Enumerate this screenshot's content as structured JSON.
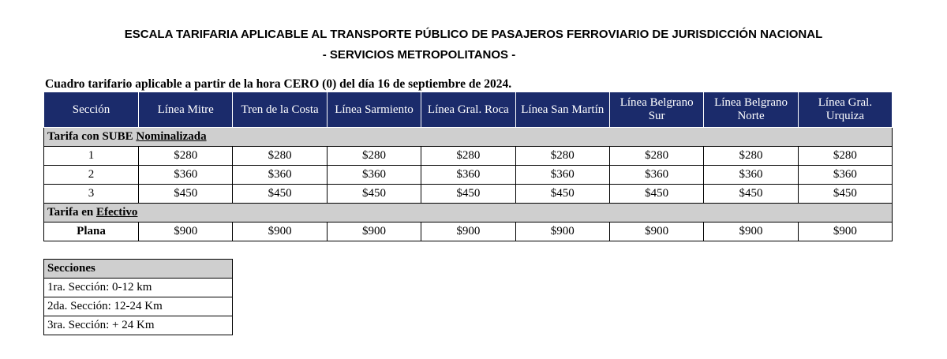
{
  "header": {
    "title": "ESCALA TARIFARIA APLICABLE AL TRANSPORTE PÚBLICO DE PASAJEROS FERROVIARIO DE JURISDICCIÓN NACIONAL",
    "subtitle": "- SERVICIOS METROPOLITANOS -"
  },
  "caption": "Cuadro tarifario aplicable a partir de la hora CERO (0) del día 16 de septiembre de 2024.",
  "table": {
    "columns": [
      "Sección",
      "Línea Mitre",
      "Tren de la Costa",
      "Línea Sarmiento",
      "Línea Gral. Roca",
      "Línea San Martín",
      "Línea Belgrano Sur",
      "Línea Belgrano Norte",
      "Línea Gral. Urquiza"
    ],
    "groups": [
      {
        "label": "Tarifa con SUBE ",
        "emphasis": "Nominalizada",
        "rows": [
          [
            "1",
            "$280",
            "$280",
            "$280",
            "$280",
            "$280",
            "$280",
            "$280",
            "$280"
          ],
          [
            "2",
            "$360",
            "$360",
            "$360",
            "$360",
            "$360",
            "$360",
            "$360",
            "$360"
          ],
          [
            "3",
            "$450",
            "$450",
            "$450",
            "$450",
            "$450",
            "$450",
            "$450",
            "$450"
          ]
        ]
      },
      {
        "label": "Tarifa en ",
        "emphasis": "Efectivo",
        "rows": [
          [
            "Plana",
            "$900",
            "$900",
            "$900",
            "$900",
            "$900",
            "$900",
            "$900",
            "$900"
          ]
        ]
      }
    ]
  },
  "sections": {
    "title": "Secciones",
    "items": [
      "1ra. Sección: 0-12 km",
      "2da. Sección: 12-24 Km",
      "3ra. Sección: + 24 Km"
    ]
  }
}
